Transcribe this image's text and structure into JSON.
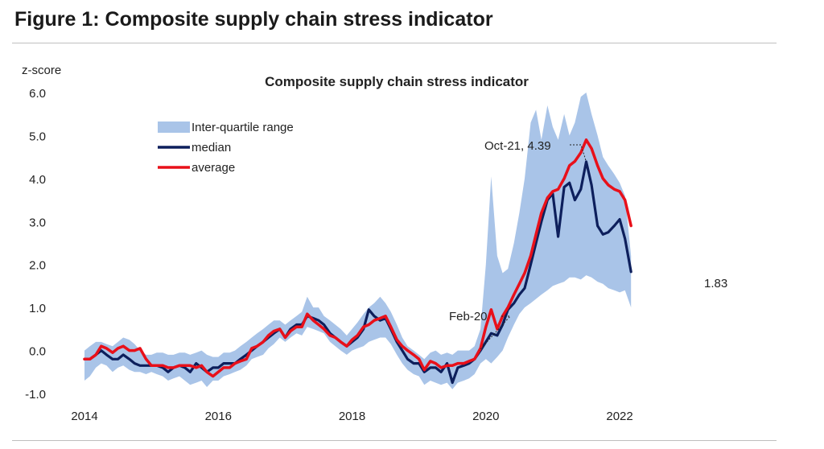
{
  "figure_title": "Figure 1: Composite supply chain stress indicator",
  "chart_data": {
    "type": "line",
    "title": "Composite supply chain stress indicator",
    "ylabel": "z-score",
    "xlabel": "",
    "ylim": [
      -1.0,
      6.0
    ],
    "xlim": [
      2014,
      2022.6
    ],
    "grid": false,
    "legend_position": "top-left",
    "y_ticks": [
      "6.0",
      "5.0",
      "4.0",
      "3.0",
      "2.0",
      "1.0",
      "0.0",
      "-1.0"
    ],
    "y_tick_values": [
      6,
      5,
      4,
      3,
      2,
      1,
      0,
      -1
    ],
    "x_ticks": [
      "2014",
      "2016",
      "2018",
      "2020",
      "2022"
    ],
    "x_tick_values": [
      2014,
      2016,
      2018,
      2020,
      2022
    ],
    "colors": {
      "iqr": "#a9c4e8",
      "median": "#0d1f5c",
      "average": "#e8101a"
    },
    "x": [
      2014.0,
      2014.08,
      2014.17,
      2014.25,
      2014.33,
      2014.42,
      2014.5,
      2014.58,
      2014.67,
      2014.75,
      2014.83,
      2014.92,
      2015.0,
      2015.08,
      2015.17,
      2015.25,
      2015.33,
      2015.42,
      2015.5,
      2015.58,
      2015.67,
      2015.75,
      2015.83,
      2015.92,
      2016.0,
      2016.08,
      2016.17,
      2016.25,
      2016.33,
      2016.42,
      2016.5,
      2016.58,
      2016.67,
      2016.75,
      2016.83,
      2016.92,
      2017.0,
      2017.08,
      2017.17,
      2017.25,
      2017.33,
      2017.42,
      2017.5,
      2017.58,
      2017.67,
      2017.75,
      2017.83,
      2017.92,
      2018.0,
      2018.08,
      2018.17,
      2018.25,
      2018.33,
      2018.42,
      2018.5,
      2018.58,
      2018.67,
      2018.75,
      2018.83,
      2018.92,
      2019.0,
      2019.08,
      2019.17,
      2019.25,
      2019.33,
      2019.42,
      2019.5,
      2019.58,
      2019.67,
      2019.75,
      2019.83,
      2019.92,
      2020.0,
      2020.08,
      2020.17,
      2020.25,
      2020.33,
      2020.42,
      2020.5,
      2020.58,
      2020.67,
      2020.75,
      2020.83,
      2020.92,
      2021.0,
      2021.08,
      2021.17,
      2021.25,
      2021.33,
      2021.42,
      2021.5,
      2021.58,
      2021.67,
      2021.75,
      2021.83,
      2021.92,
      2022.0,
      2022.08,
      2022.17
    ],
    "series": [
      {
        "name": "median",
        "values": [
          -0.2,
          -0.2,
          -0.1,
          0.0,
          -0.1,
          -0.2,
          -0.2,
          -0.1,
          -0.2,
          -0.3,
          -0.35,
          -0.35,
          -0.35,
          -0.35,
          -0.4,
          -0.5,
          -0.4,
          -0.35,
          -0.4,
          -0.5,
          -0.3,
          -0.4,
          -0.5,
          -0.4,
          -0.4,
          -0.3,
          -0.3,
          -0.3,
          -0.2,
          -0.1,
          0.0,
          0.1,
          0.2,
          0.3,
          0.4,
          0.5,
          0.3,
          0.5,
          0.6,
          0.6,
          0.8,
          0.75,
          0.7,
          0.6,
          0.4,
          0.3,
          0.2,
          0.1,
          0.2,
          0.3,
          0.5,
          0.95,
          0.8,
          0.7,
          0.75,
          0.5,
          0.2,
          0.0,
          -0.2,
          -0.3,
          -0.3,
          -0.5,
          -0.4,
          -0.4,
          -0.5,
          -0.3,
          -0.75,
          -0.4,
          -0.35,
          -0.3,
          -0.2,
          0.0,
          0.2,
          0.4,
          0.35,
          0.6,
          0.95,
          1.1,
          1.3,
          1.45,
          2.0,
          2.5,
          3.0,
          3.5,
          3.65,
          2.65,
          3.8,
          3.9,
          3.5,
          3.75,
          4.39,
          3.85,
          2.9,
          2.7,
          2.75,
          2.9,
          3.05,
          2.6,
          1.83
        ]
      },
      {
        "name": "average",
        "values": [
          -0.2,
          -0.2,
          -0.1,
          0.1,
          0.05,
          -0.05,
          0.05,
          0.1,
          0.0,
          0.0,
          0.05,
          -0.2,
          -0.35,
          -0.35,
          -0.35,
          -0.4,
          -0.4,
          -0.35,
          -0.35,
          -0.35,
          -0.4,
          -0.35,
          -0.5,
          -0.6,
          -0.5,
          -0.4,
          -0.4,
          -0.3,
          -0.25,
          -0.2,
          0.05,
          0.1,
          0.2,
          0.35,
          0.45,
          0.5,
          0.3,
          0.45,
          0.55,
          0.55,
          0.85,
          0.7,
          0.6,
          0.5,
          0.35,
          0.3,
          0.2,
          0.1,
          0.25,
          0.35,
          0.55,
          0.6,
          0.7,
          0.75,
          0.8,
          0.55,
          0.25,
          0.1,
          0.0,
          -0.1,
          -0.2,
          -0.45,
          -0.25,
          -0.3,
          -0.4,
          -0.35,
          -0.35,
          -0.3,
          -0.3,
          -0.25,
          -0.2,
          0.05,
          0.55,
          0.95,
          0.5,
          0.8,
          1.0,
          1.3,
          1.55,
          1.8,
          2.2,
          2.7,
          3.2,
          3.55,
          3.7,
          3.75,
          4.0,
          4.3,
          4.4,
          4.6,
          4.9,
          4.7,
          4.3,
          4.0,
          3.85,
          3.75,
          3.7,
          3.5,
          2.9
        ]
      }
    ],
    "iqr_low": [
      -0.7,
      -0.6,
      -0.4,
      -0.3,
      -0.35,
      -0.5,
      -0.4,
      -0.35,
      -0.45,
      -0.5,
      -0.5,
      -0.55,
      -0.5,
      -0.55,
      -0.6,
      -0.7,
      -0.65,
      -0.6,
      -0.7,
      -0.8,
      -0.75,
      -0.7,
      -0.85,
      -0.7,
      -0.7,
      -0.6,
      -0.55,
      -0.5,
      -0.45,
      -0.35,
      -0.2,
      -0.15,
      -0.1,
      0.05,
      0.15,
      0.3,
      0.2,
      0.3,
      0.4,
      0.35,
      0.55,
      0.5,
      0.45,
      0.4,
      0.2,
      0.1,
      0.0,
      -0.1,
      0.0,
      0.05,
      0.1,
      0.2,
      0.25,
      0.3,
      0.3,
      0.15,
      -0.1,
      -0.3,
      -0.45,
      -0.55,
      -0.6,
      -0.8,
      -0.7,
      -0.75,
      -0.8,
      -0.75,
      -0.9,
      -0.75,
      -0.7,
      -0.65,
      -0.55,
      -0.3,
      -0.2,
      -0.3,
      -0.15,
      0.0,
      0.3,
      0.6,
      0.85,
      1.0,
      1.1,
      1.2,
      1.3,
      1.4,
      1.5,
      1.55,
      1.6,
      1.7,
      1.7,
      1.65,
      1.75,
      1.7,
      1.6,
      1.55,
      1.45,
      1.4,
      1.35,
      1.4,
      1.0
    ],
    "iqr_high": [
      0.0,
      0.1,
      0.2,
      0.2,
      0.15,
      0.1,
      0.2,
      0.3,
      0.25,
      0.15,
      0.0,
      -0.1,
      -0.1,
      -0.05,
      -0.05,
      -0.1,
      -0.1,
      -0.05,
      -0.05,
      -0.1,
      -0.05,
      0.0,
      -0.1,
      -0.15,
      -0.15,
      -0.05,
      -0.05,
      0.0,
      0.1,
      0.2,
      0.3,
      0.4,
      0.5,
      0.6,
      0.7,
      0.7,
      0.6,
      0.7,
      0.8,
      0.9,
      1.25,
      1.0,
      1.0,
      0.8,
      0.7,
      0.6,
      0.5,
      0.35,
      0.5,
      0.65,
      0.85,
      1.0,
      1.1,
      1.25,
      1.1,
      0.9,
      0.6,
      0.3,
      0.1,
      0.0,
      -0.1,
      -0.2,
      -0.05,
      0.0,
      -0.1,
      -0.05,
      -0.1,
      0.0,
      0.0,
      0.0,
      0.1,
      0.5,
      2.0,
      4.05,
      2.2,
      1.8,
      1.9,
      2.5,
      3.2,
      4.0,
      5.3,
      5.6,
      4.9,
      5.7,
      5.2,
      4.9,
      5.5,
      5.0,
      5.3,
      5.9,
      6.0,
      5.5,
      5.0,
      4.5,
      4.3,
      4.1,
      3.9,
      3.6,
      2.2
    ],
    "legend": [
      {
        "label": "Inter-quartile range",
        "kind": "band"
      },
      {
        "label": "median",
        "kind": "median"
      },
      {
        "label": "average",
        "kind": "average"
      }
    ],
    "annotations": [
      {
        "text": "Oct-21, 4.39",
        "x": 2021.5,
        "y": 4.39
      },
      {
        "text": "Feb-20",
        "x": 2019.9,
        "y": 0.0
      },
      {
        "text": "1.83",
        "x": 2022.17,
        "y": 1.83
      }
    ]
  }
}
